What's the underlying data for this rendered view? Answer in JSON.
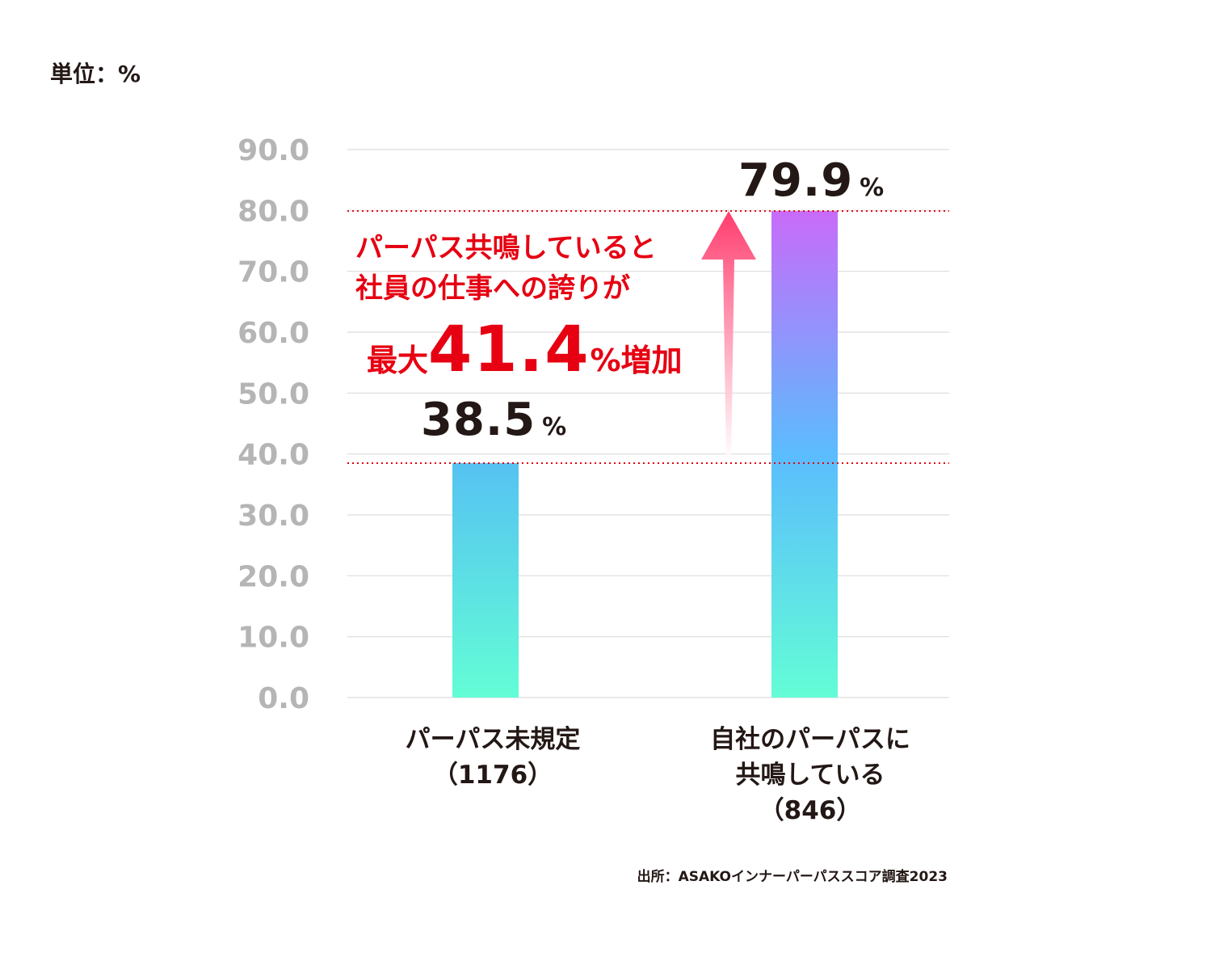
{
  "unit_label": "単位：%",
  "source": "出所：ASAKOインナーパーパススコア調査2023",
  "callout": {
    "line1": "パーパス共鳴していると",
    "line2": "社員の仕事への誇りが",
    "prefix": "最大",
    "value": "41.4",
    "pct": "%",
    "suffix": "増加"
  },
  "colors": {
    "accent_red": "#e60012",
    "arrow": "#ff3d6e",
    "bar1_top": "#56c2f2",
    "bar1_bottom": "#63fdd6",
    "bar2_top": "#c86bfa",
    "bar2_mid": "#5bbcfd",
    "bar2_bottom": "#63fdd6"
  },
  "chart_data": {
    "type": "bar",
    "categories": [
      {
        "label_lines": [
          "パーパス未規定",
          "（1176）"
        ]
      },
      {
        "label_lines": [
          "自社のパーパスに",
          "共鳴している",
          "（846）"
        ]
      }
    ],
    "values": [
      38.5,
      79.9
    ],
    "value_labels": [
      "38.5",
      "79.9"
    ],
    "value_unit": "%",
    "ylim": [
      0,
      90
    ],
    "yticks": [
      "0.0",
      "10.0",
      "20.0",
      "30.0",
      "40.0",
      "50.0",
      "60.0",
      "70.0",
      "80.0",
      "90.0"
    ],
    "grid": true,
    "reference_lines": [
      38.5,
      79.9
    ]
  }
}
